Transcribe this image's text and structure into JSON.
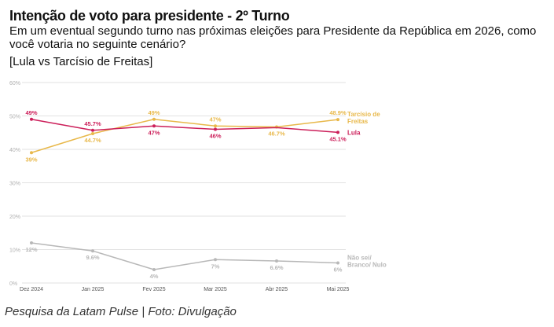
{
  "header": {
    "title": "Intenção de voto para presidente - 2º Turno",
    "subtitle": "Em um eventual segundo turno nas próximas eleições para Presidente da República em 2026, como você votaria no seguinte cenário?",
    "scenario": "[Lula vs Tarcísio de Freitas]"
  },
  "caption": "Pesquisa da Latam Pulse | Foto: Divulgação",
  "colors": {
    "lula": "#cc1f5a",
    "tarcisio": "#e8b84a",
    "undecided": "#b8b8b8",
    "grid": "#e2e2e2",
    "tick": "#b0b0b0"
  },
  "chart_data": {
    "type": "line",
    "categories": [
      "Dez 2024",
      "Jan 2025",
      "Fev 2025",
      "Mar 2025",
      "Abr 2025",
      "Mai 2025"
    ],
    "y_ticks": [
      "0%",
      "10%",
      "20%",
      "30%",
      "40%",
      "50%",
      "60%"
    ],
    "ylim": [
      0,
      60
    ],
    "grid": true,
    "series": [
      {
        "key": "tarcisio",
        "name": "Tarcísio de Freitas",
        "name_lines": [
          "Tarcísio de",
          "Freitas"
        ],
        "values": [
          39,
          44.7,
          49,
          47,
          46.7,
          48.9
        ],
        "labels": [
          "39%",
          "44.7%",
          "49%",
          "47%",
          "46.7%",
          "48.9%"
        ],
        "label_pos": [
          "below",
          "below",
          "above",
          "above",
          "below",
          "above"
        ]
      },
      {
        "key": "lula",
        "name": "Lula",
        "name_lines": [
          "Lula"
        ],
        "values": [
          49,
          45.7,
          47,
          46,
          null,
          45.1
        ],
        "labels": [
          "49%",
          "45.7%",
          "47%",
          "46%",
          "",
          "45.1%"
        ],
        "label_pos": [
          "above",
          "above",
          "below",
          "below",
          "none",
          "below"
        ]
      },
      {
        "key": "undecided",
        "name": "Não sei/ Branco/ Nulo",
        "name_lines": [
          "Não sei/",
          "Branco/ Nulo"
        ],
        "values": [
          12,
          9.6,
          4,
          7,
          6.6,
          6
        ],
        "labels": [
          "12%",
          "9.6%",
          "4%",
          "7%",
          "6.6%",
          "6%"
        ],
        "label_pos": [
          "below",
          "below",
          "below",
          "below",
          "below",
          "below"
        ]
      }
    ],
    "lula_abr_2025_estimate": 46.5
  }
}
